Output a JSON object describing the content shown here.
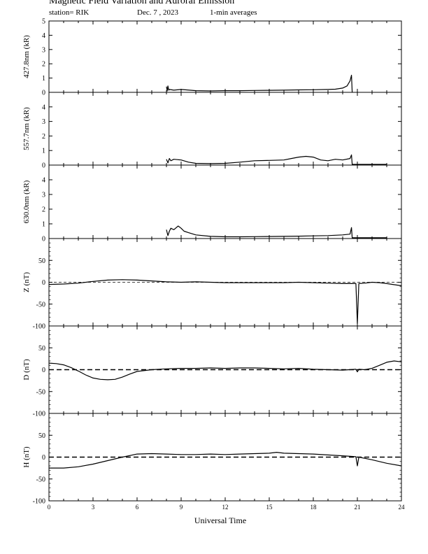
{
  "header": {
    "title": "Magnetic Field Variation and Auroral Emission",
    "station": "station= RIK",
    "date": "Dec. 7  , 2023",
    "averaging": "1-min averages"
  },
  "chart_data": [
    {
      "type": "line",
      "ylabel": "427.8nm (kR)",
      "ylim": [
        0,
        5
      ],
      "yticks": [
        0,
        1,
        2,
        3,
        4,
        5
      ],
      "xlim": [
        0,
        24
      ],
      "series": [
        {
          "x": [
            8.0,
            8.05,
            8.1,
            8.15,
            8.2,
            8.5,
            9,
            10,
            11,
            12,
            13,
            14,
            15,
            16,
            17,
            18,
            19,
            19.5,
            20,
            20.3,
            20.5,
            20.6,
            20.65
          ],
          "y": [
            0.4,
            0.1,
            0.45,
            0.15,
            0.2,
            0.15,
            0.2,
            0.12,
            0.1,
            0.12,
            0.12,
            0.13,
            0.14,
            0.15,
            0.17,
            0.18,
            0.2,
            0.22,
            0.3,
            0.45,
            0.8,
            1.2,
            0.0
          ]
        }
      ]
    },
    {
      "type": "line",
      "ylabel": "557.7nm (kR)",
      "ylim": [
        0,
        5
      ],
      "yticks": [
        0,
        1,
        2,
        3,
        4
      ],
      "xlim": [
        0,
        24
      ],
      "series": [
        {
          "x": [
            8.0,
            8.1,
            8.2,
            8.3,
            8.5,
            9,
            9.5,
            10,
            11,
            12,
            13,
            14,
            15,
            16,
            16.5,
            17,
            17.5,
            18,
            18.5,
            19,
            19.5,
            20,
            20.5,
            20.6,
            20.65,
            21,
            22,
            23
          ],
          "y": [
            0.4,
            0.15,
            0.45,
            0.3,
            0.4,
            0.35,
            0.2,
            0.12,
            0.1,
            0.12,
            0.2,
            0.3,
            0.32,
            0.35,
            0.45,
            0.55,
            0.6,
            0.55,
            0.35,
            0.3,
            0.4,
            0.35,
            0.45,
            0.7,
            0.05,
            0.05,
            0.05,
            0.05
          ]
        }
      ]
    },
    {
      "type": "line",
      "ylabel": "630.0nm (kR)",
      "ylim": [
        0,
        5
      ],
      "yticks": [
        0,
        1,
        2,
        3,
        4
      ],
      "xlim": [
        0,
        24
      ],
      "series": [
        {
          "x": [
            8.0,
            8.1,
            8.2,
            8.3,
            8.5,
            8.8,
            9.0,
            9.2,
            9.5,
            10,
            11,
            12,
            13,
            14,
            15,
            16,
            17,
            18,
            19,
            20,
            20.5,
            20.6,
            20.65,
            21,
            22,
            23
          ],
          "y": [
            0.6,
            0.2,
            0.5,
            0.7,
            0.6,
            0.85,
            0.7,
            0.5,
            0.4,
            0.25,
            0.15,
            0.12,
            0.12,
            0.13,
            0.14,
            0.15,
            0.16,
            0.18,
            0.2,
            0.25,
            0.3,
            0.75,
            0.05,
            0.05,
            0.05,
            0.05
          ]
        }
      ]
    },
    {
      "type": "line",
      "ylabel": "Z (nT)",
      "ylim": [
        -100,
        100
      ],
      "yticks": [
        -100,
        -50,
        0,
        50
      ],
      "xlim": [
        0,
        24
      ],
      "baseline": 0,
      "series": [
        {
          "x": [
            0,
            1,
            2,
            3,
            4,
            5,
            6,
            7,
            8,
            9,
            10,
            11,
            12,
            13,
            14,
            15,
            16,
            17,
            18,
            19,
            20,
            20.9,
            21.0,
            21.1,
            21.5,
            22,
            22.5,
            23,
            24
          ],
          "y": [
            -5,
            -4,
            -2,
            2,
            5,
            6,
            5,
            3,
            1,
            0,
            1,
            0,
            -1,
            -1,
            -1,
            -1,
            -1,
            0,
            -1,
            -2,
            -3,
            -3,
            -95,
            -3,
            -2,
            0,
            -1,
            -3,
            -8
          ]
        }
      ]
    },
    {
      "type": "line",
      "ylabel": "D (nT)",
      "ylim": [
        -100,
        100
      ],
      "yticks": [
        -100,
        -50,
        0,
        50
      ],
      "xlim": [
        0,
        24
      ],
      "baseline": 0,
      "series": [
        {
          "x": [
            0,
            0.5,
            1,
            1.5,
            2,
            2.5,
            3,
            3.5,
            4,
            4.5,
            5,
            5.5,
            6,
            7,
            8,
            9,
            10,
            11,
            12,
            13,
            14,
            15,
            16,
            17,
            18,
            19,
            20,
            20.9,
            21.0,
            21.1,
            21.5,
            22,
            22.5,
            23,
            23.5,
            24
          ],
          "y": [
            15,
            14,
            11,
            5,
            -3,
            -12,
            -19,
            -22,
            -23,
            -22,
            -17,
            -10,
            -4,
            0,
            2,
            3,
            3,
            4,
            3,
            4,
            4,
            3,
            2,
            3,
            1,
            0,
            -1,
            1,
            -5,
            1,
            0,
            3,
            10,
            17,
            20,
            18
          ]
        }
      ]
    },
    {
      "type": "line",
      "ylabel": "H (nT)",
      "ylim": [
        -100,
        100
      ],
      "yticks": [
        -100,
        -50,
        0,
        50
      ],
      "xlim": [
        0,
        24
      ],
      "xticks": [
        0,
        3,
        6,
        9,
        12,
        15,
        18,
        21,
        24
      ],
      "xlabel": "Universal Time",
      "baseline": 0,
      "series": [
        {
          "x": [
            0,
            1,
            2,
            3,
            4,
            5,
            6,
            7,
            8,
            9,
            10,
            11,
            12,
            13,
            14,
            15,
            15.5,
            16,
            17,
            18,
            19,
            20,
            20.9,
            21.0,
            21.1,
            22,
            23,
            24
          ],
          "y": [
            -25,
            -25,
            -22,
            -16,
            -8,
            0,
            7,
            8,
            7,
            6,
            6,
            7,
            6,
            7,
            8,
            9,
            11,
            9,
            8,
            7,
            5,
            3,
            1,
            -20,
            0,
            -6,
            -14,
            -20
          ]
        }
      ]
    }
  ]
}
